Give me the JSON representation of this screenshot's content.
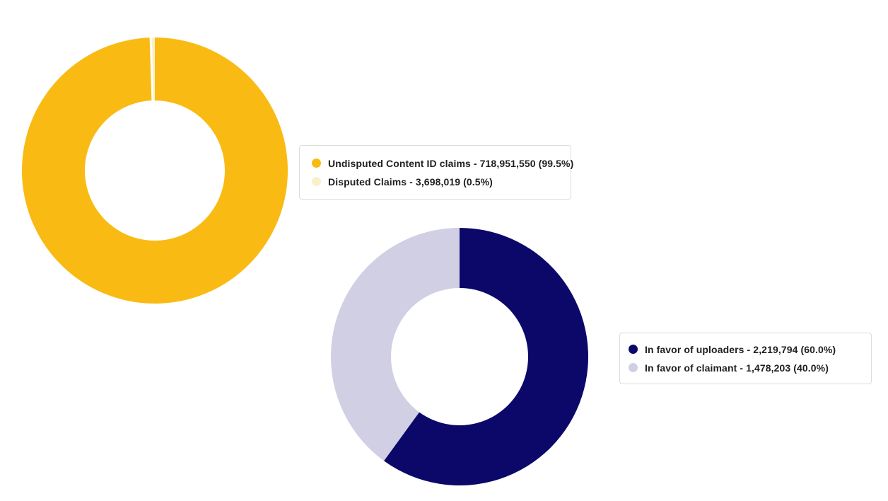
{
  "page": {
    "background_color": "#ffffff",
    "description": "Two donut charts: Content ID claims dispute rate and dispute resolution outcomes"
  },
  "chart_data": [
    {
      "type": "pie",
      "subtype": "donut",
      "title": "",
      "legend_position": "right",
      "separators": true,
      "separator_color": "#ffffff",
      "slices": [
        {
          "label": "Undisputed Content ID claims",
          "value": 718951550,
          "pct": 99.5,
          "display": "Undisputed Content ID claims -  718,951,550 (99.5%)",
          "color": "#F9BB13"
        },
        {
          "label": "Disputed Claims",
          "value": 3698019,
          "pct": 0.5,
          "display": "Disputed Claims - 3,698,019 (0.5%)",
          "color": "#FAF0C9"
        }
      ]
    },
    {
      "type": "pie",
      "subtype": "donut",
      "title": "",
      "legend_position": "right",
      "separators": false,
      "separator_color": "#ffffff",
      "slices": [
        {
          "label": "In favor of uploaders",
          "value": 2219794,
          "pct": 60.0,
          "display": "In favor of uploaders - 2,219,794 (60.0%)",
          "color": "#0B086A"
        },
        {
          "label": "In favor of claimant",
          "value": 1478203,
          "pct": 40.0,
          "display": "In favor of claimant - 1,478,203 (40.0%)",
          "color": "#D1CFE4"
        }
      ]
    }
  ]
}
